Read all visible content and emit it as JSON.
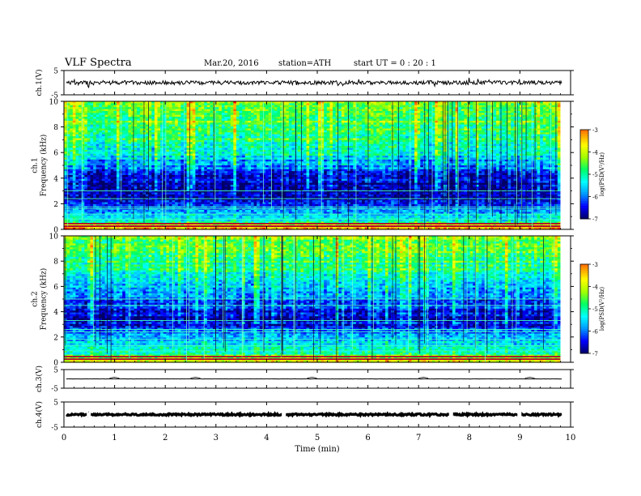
{
  "header": {
    "title": "VLF  Spectra",
    "date": "Mar.20, 2016",
    "station": "station=ATH",
    "start": "start  UT =    0  : 20 : 1"
  },
  "chart_data": [
    {
      "type": "line",
      "panel": "ch1-waveform",
      "ylabel": "ch.1(V)",
      "ylim": [
        -5,
        5
      ],
      "yticks": [
        "5",
        "-5"
      ],
      "xlim": [
        0,
        10
      ],
      "baseline": 0,
      "noise_amplitude": 0.8
    },
    {
      "type": "heatmap",
      "panel": "ch1-spectrogram",
      "ylabel": "ch.1\nFrequency (kHz)",
      "ylim": [
        0,
        10
      ],
      "yticks": [
        "0",
        "2",
        "4",
        "6",
        "8",
        "10"
      ],
      "xlim": [
        0,
        9.8
      ],
      "colorbar": {
        "label": "log(PSD(V²/Hz)",
        "range": [
          -7,
          -3
        ],
        "ticks": [
          "-3",
          "-4",
          "-5",
          "-6",
          "-7"
        ]
      },
      "profile": [
        {
          "f": 0.0,
          "v": -3.6
        },
        {
          "f": 0.3,
          "v": -4.0
        },
        {
          "f": 0.6,
          "v": -5.2
        },
        {
          "f": 1.0,
          "v": -5.6
        },
        {
          "f": 1.5,
          "v": -6.0
        },
        {
          "f": 2.0,
          "v": -6.5
        },
        {
          "f": 2.5,
          "v": -6.8
        },
        {
          "f": 3.0,
          "v": -6.9
        },
        {
          "f": 3.5,
          "v": -6.8
        },
        {
          "f": 4.0,
          "v": -6.6
        },
        {
          "f": 4.5,
          "v": -6.3
        },
        {
          "f": 5.0,
          "v": -6.0
        },
        {
          "f": 5.5,
          "v": -5.7
        },
        {
          "f": 6.0,
          "v": -5.5
        },
        {
          "f": 6.5,
          "v": -5.3
        },
        {
          "f": 7.0,
          "v": -5.1
        },
        {
          "f": 8.0,
          "v": -4.9
        },
        {
          "f": 9.0,
          "v": -4.7
        },
        {
          "f": 10.0,
          "v": -4.6
        }
      ]
    },
    {
      "type": "heatmap",
      "panel": "ch2-spectrogram",
      "ylabel": "ch.2\nFrequency (kHz)",
      "ylim": [
        0,
        10
      ],
      "yticks": [
        "0",
        "2",
        "4",
        "6",
        "8",
        "10"
      ],
      "xlim": [
        0,
        9.8
      ],
      "colorbar": {
        "label": "log(PSD(V²/Hz)",
        "range": [
          -7,
          -3
        ],
        "ticks": [
          "-3",
          "-4",
          "-5",
          "-6",
          "-7"
        ]
      },
      "profile": [
        {
          "f": 0.0,
          "v": -3.8
        },
        {
          "f": 0.3,
          "v": -4.2
        },
        {
          "f": 0.6,
          "v": -5.0
        },
        {
          "f": 1.0,
          "v": -5.3
        },
        {
          "f": 1.5,
          "v": -5.6
        },
        {
          "f": 2.0,
          "v": -5.9
        },
        {
          "f": 2.5,
          "v": -6.2
        },
        {
          "f": 3.0,
          "v": -6.5
        },
        {
          "f": 3.5,
          "v": -6.6
        },
        {
          "f": 4.0,
          "v": -6.5
        },
        {
          "f": 4.5,
          "v": -6.4
        },
        {
          "f": 5.0,
          "v": -6.2
        },
        {
          "f": 5.5,
          "v": -6.0
        },
        {
          "f": 6.0,
          "v": -5.8
        },
        {
          "f": 7.0,
          "v": -5.3
        },
        {
          "f": 8.0,
          "v": -5.0
        },
        {
          "f": 9.0,
          "v": -4.8
        },
        {
          "f": 10.0,
          "v": -4.6
        }
      ]
    },
    {
      "type": "line",
      "panel": "ch3-waveform",
      "ylabel": "ch.3(V)",
      "ylim": [
        -5,
        5
      ],
      "yticks": [
        "5",
        "-5"
      ],
      "xlim": [
        0,
        10
      ],
      "baseline": 0,
      "noise_amplitude": 0.05
    },
    {
      "type": "line",
      "panel": "ch4-waveform",
      "ylabel": "ch.4(V)",
      "ylim": [
        -5,
        5
      ],
      "yticks": [
        "5",
        "-5"
      ],
      "xlim": [
        0,
        10
      ],
      "baseline": 0,
      "noise_amplitude": 0.35
    }
  ],
  "x_axis": {
    "label": "Time  (min)",
    "range": [
      0,
      10
    ],
    "ticks": [
      "0",
      "1",
      "2",
      "3",
      "4",
      "5",
      "6",
      "7",
      "8",
      "9",
      "10"
    ]
  },
  "colors": {
    "frame": "#000000",
    "colormap": [
      "#000066",
      "#0000ff",
      "#0096ff",
      "#00ffff",
      "#00ff66",
      "#a0ff00",
      "#ffff00",
      "#ff8c00",
      "#ff0000",
      "#ffffff"
    ]
  }
}
